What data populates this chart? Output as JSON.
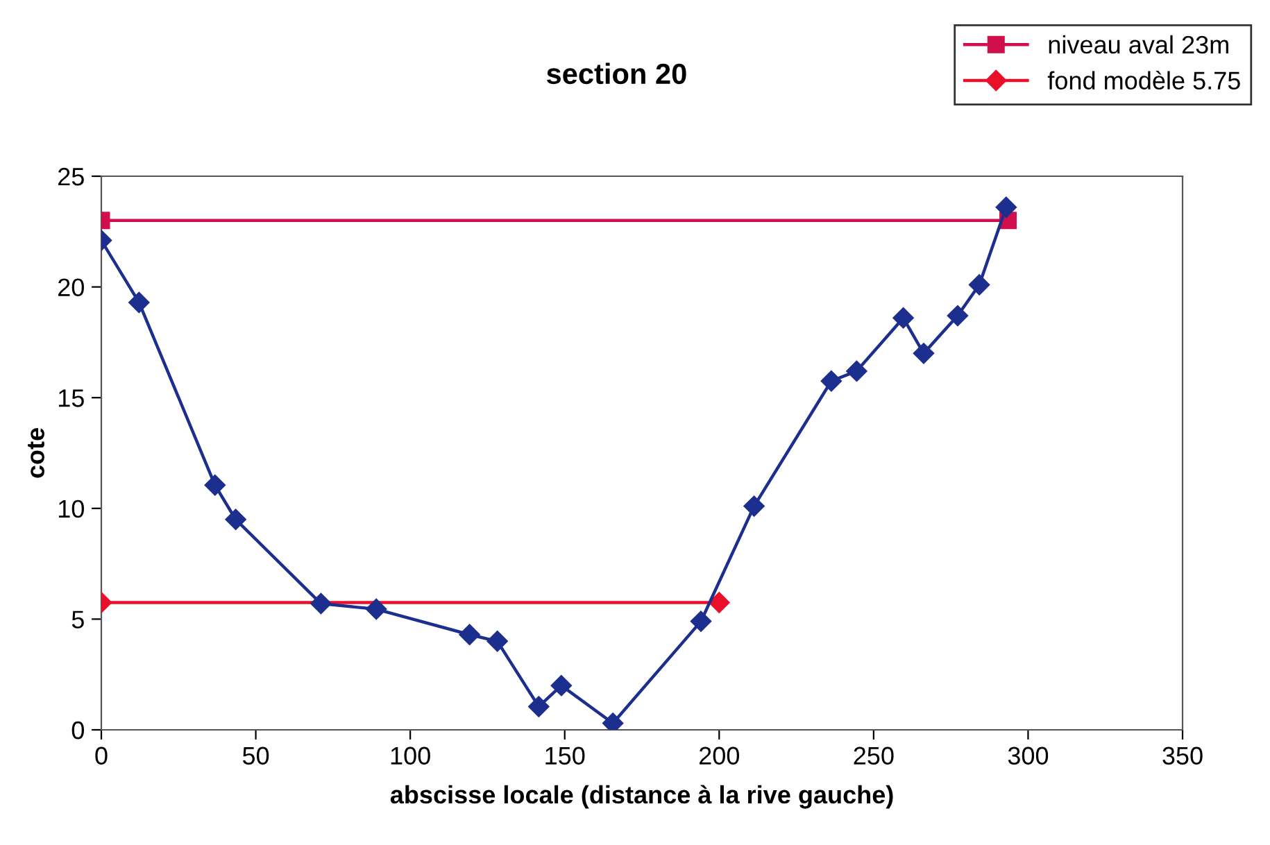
{
  "chart_data": {
    "type": "line",
    "title": "section 20",
    "xlabel": "abscisse locale (distance à la rive gauche)",
    "ylabel": "cote",
    "xlim": [
      0,
      350
    ],
    "xticks": [
      0,
      50,
      100,
      150,
      200,
      250,
      300,
      350
    ],
    "ylim": [
      0,
      25
    ],
    "yticks": [
      0,
      5,
      10,
      15,
      20,
      25
    ],
    "grid": false,
    "legend": "top right",
    "line_style": "solid",
    "series": [
      {
        "color": "#1c2f8f",
        "marker": "diamond",
        "x": [
          0,
          12.2,
          36.8,
          43.5,
          71.1,
          89,
          119.2,
          128.2,
          141.6,
          148.9,
          165.6,
          194.1,
          211.3,
          236.3,
          244.5,
          259.6,
          266.2,
          277.2,
          284.2,
          292.9
        ],
        "values": [
          22.1,
          19.3,
          11.05,
          9.5,
          5.7,
          5.45,
          4.3,
          4.0,
          1.05,
          2.0,
          0.3,
          4.9,
          10.1,
          15.75,
          16.2,
          18.6,
          17.0,
          18.7,
          20.1,
          23.6
        ]
      },
      {
        "name": "niveau aval 23m",
        "color": "#d0104c",
        "marker": "square",
        "x": [
          0,
          293.5
        ],
        "values": [
          23,
          23
        ]
      },
      {
        "name": "fond modèle 5.75",
        "color": "#e8102a",
        "marker": "diamond",
        "x": [
          0,
          200
        ],
        "values": [
          5.75,
          5.75
        ]
      }
    ]
  }
}
